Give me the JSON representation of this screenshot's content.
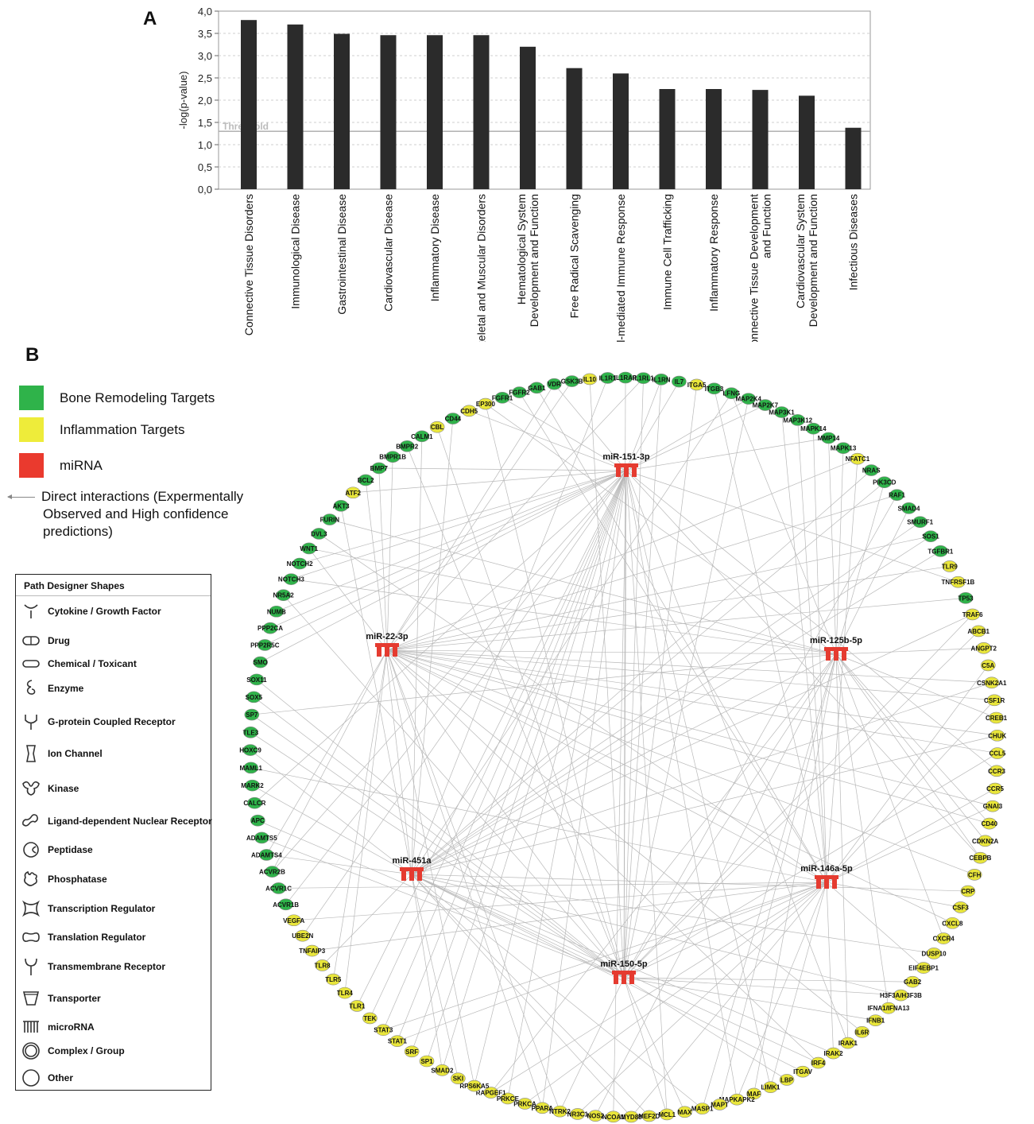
{
  "panel_a": {
    "letter": "A",
    "threshold_label": "Threshold",
    "chart_data": {
      "type": "bar",
      "categories": [
        "Connective Tissue Disorders",
        "Immunological Disease",
        "Gastrointestinal Disease",
        "Cardiovascular Disease",
        "Inflammatory Disease",
        "Skeletal and Muscular Disorders",
        "Hematological System\nDevelopment and Function",
        "Free Radical Scavenging",
        "Cell-mediated Immune Response",
        "Immune Cell Trafficking",
        "Inflammatory Response",
        "Connective Tissue Development\nand Function",
        "Cardiovascular System\nDevelopment and Function",
        "Infectious Diseases"
      ],
      "values": [
        3.8,
        3.7,
        3.49,
        3.46,
        3.46,
        3.46,
        3.2,
        2.72,
        2.6,
        2.25,
        2.25,
        2.23,
        2.1,
        1.38
      ],
      "ylabel": "-log(p-value)",
      "xlabel": "",
      "ylim": [
        0,
        4.0
      ],
      "yticks": [
        "0,0",
        "0,5",
        "1,0",
        "1,5",
        "2,0",
        "2,5",
        "3,0",
        "3,5",
        "4,0"
      ],
      "threshold": 1.3,
      "bar_color": "#2b2b2b",
      "grid": "dashed horizontal"
    }
  },
  "panel_b": {
    "letter": "B",
    "legend": [
      {
        "label": "Bone Remodeling Targets",
        "color": "#2fb34a"
      },
      {
        "label": "Inflammation Targets",
        "color": "#eeec3a"
      },
      {
        "label": "miRNA",
        "color": "#ea3a2e"
      }
    ],
    "arrow_legend": [
      "Direct interactions (Expermentally",
      "Observed and High confidence",
      "predictions)"
    ],
    "shapes_title": "Path Designer Shapes",
    "shapes": [
      {
        "label": "Cytokine / Growth Factor",
        "icon": "cytokine-icon"
      },
      {
        "label": "Drug",
        "icon": "drug-icon"
      },
      {
        "label": "Chemical / Toxicant",
        "icon": "chemical-icon"
      },
      {
        "label": "Enzyme",
        "icon": "enzyme-icon"
      },
      {
        "label": "G-protein Coupled Receptor",
        "icon": "gpcr-icon"
      },
      {
        "label": "Ion Channel",
        "icon": "ion-channel-icon"
      },
      {
        "label": "Kinase",
        "icon": "kinase-icon"
      },
      {
        "label": "Ligand-dependent Nuclear Receptor",
        "icon": "nuclear-receptor-icon"
      },
      {
        "label": "Peptidase",
        "icon": "peptidase-icon"
      },
      {
        "label": "Phosphatase",
        "icon": "phosphatase-icon"
      },
      {
        "label": "Transcription Regulator",
        "icon": "transcription-regulator-icon"
      },
      {
        "label": "Translation Regulator",
        "icon": "translation-regulator-icon"
      },
      {
        "label": "Transmembrane Receptor",
        "icon": "transmembrane-receptor-icon"
      },
      {
        "label": "Transporter",
        "icon": "transporter-icon"
      },
      {
        "label": "microRNA",
        "icon": "microrna-icon"
      },
      {
        "label": "Complex / Group",
        "icon": "complex-icon"
      },
      {
        "label": "Other",
        "icon": "other-icon"
      }
    ],
    "network": {
      "mirnas": [
        "miR-151-3p",
        "miR-22-3p",
        "miR-125b-5p",
        "miR-451a",
        "miR-146a-5p",
        "miR-150-5p"
      ],
      "nodes": [
        {
          "label": "GSK3B",
          "group": "green"
        },
        {
          "label": "IL10",
          "group": "yellow"
        },
        {
          "label": "IL1R1",
          "group": "green"
        },
        {
          "label": "IL1RAP",
          "group": "green"
        },
        {
          "label": "IL1RL1",
          "group": "green"
        },
        {
          "label": "IL1RN",
          "group": "green"
        },
        {
          "label": "IL7",
          "group": "green"
        },
        {
          "label": "ITGA5",
          "group": "yellow"
        },
        {
          "label": "ITGB3",
          "group": "green"
        },
        {
          "label": "LFNG",
          "group": "green"
        },
        {
          "label": "MAP2K4",
          "group": "green"
        },
        {
          "label": "MAP2K7",
          "group": "green"
        },
        {
          "label": "MAP3K1",
          "group": "green"
        },
        {
          "label": "MAP3K12",
          "group": "green"
        },
        {
          "label": "MAPK14",
          "group": "green"
        },
        {
          "label": "MMP14",
          "group": "green"
        },
        {
          "label": "MAPK13",
          "group": "green"
        },
        {
          "label": "NFATC1",
          "group": "yellow"
        },
        {
          "label": "NRAS",
          "group": "green"
        },
        {
          "label": "PIK3CD",
          "group": "green"
        },
        {
          "label": "RAF1",
          "group": "green"
        },
        {
          "label": "SMAD4",
          "group": "green"
        },
        {
          "label": "SMURF1",
          "group": "green"
        },
        {
          "label": "SOS1",
          "group": "green"
        },
        {
          "label": "TGFBR1",
          "group": "green"
        },
        {
          "label": "TLR9",
          "group": "yellow"
        },
        {
          "label": "TNFRSF1B",
          "group": "yellow"
        },
        {
          "label": "TP53",
          "group": "green"
        },
        {
          "label": "TRAF6",
          "group": "yellow"
        },
        {
          "label": "ABCB1",
          "group": "yellow"
        },
        {
          "label": "ANGPT2",
          "group": "yellow"
        },
        {
          "label": "C5A",
          "group": "yellow"
        },
        {
          "label": "CSNK2A1",
          "group": "yellow"
        },
        {
          "label": "CSF1R",
          "group": "yellow"
        },
        {
          "label": "CREB1",
          "group": "yellow"
        },
        {
          "label": "CHUK",
          "group": "yellow"
        },
        {
          "label": "CCL5",
          "group": "yellow"
        },
        {
          "label": "CCR3",
          "group": "yellow"
        },
        {
          "label": "CCR5",
          "group": "yellow"
        },
        {
          "label": "GNAI3",
          "group": "yellow"
        },
        {
          "label": "CD40",
          "group": "yellow"
        },
        {
          "label": "CDKN2A",
          "group": "yellow"
        },
        {
          "label": "CEBPB",
          "group": "yellow"
        },
        {
          "label": "CFH",
          "group": "yellow"
        },
        {
          "label": "CRP",
          "group": "yellow"
        },
        {
          "label": "CSF3",
          "group": "yellow"
        },
        {
          "label": "CXCL8",
          "group": "yellow"
        },
        {
          "label": "CXCR4",
          "group": "yellow"
        },
        {
          "label": "DUSP10",
          "group": "yellow"
        },
        {
          "label": "EIF4EBP1",
          "group": "yellow"
        },
        {
          "label": "GAB2",
          "group": "yellow"
        },
        {
          "label": "H3F3A/H3F3B",
          "group": "yellow"
        },
        {
          "label": "IFNA1/IFNA13",
          "group": "yellow"
        },
        {
          "label": "IFNB1",
          "group": "yellow"
        },
        {
          "label": "IL6R",
          "group": "yellow"
        },
        {
          "label": "IRAK1",
          "group": "yellow"
        },
        {
          "label": "IRAK2",
          "group": "yellow"
        },
        {
          "label": "IRF4",
          "group": "yellow"
        },
        {
          "label": "ITGAV",
          "group": "yellow"
        },
        {
          "label": "LBP",
          "group": "yellow"
        },
        {
          "label": "LIMK1",
          "group": "yellow"
        },
        {
          "label": "MAF",
          "group": "yellow"
        },
        {
          "label": "MAPKAPK2",
          "group": "yellow"
        },
        {
          "label": "MAPT",
          "group": "yellow"
        },
        {
          "label": "MASP1",
          "group": "yellow"
        },
        {
          "label": "MAX",
          "group": "yellow"
        },
        {
          "label": "MCL1",
          "group": "yellow"
        },
        {
          "label": "MEF2D",
          "group": "yellow"
        },
        {
          "label": "MYD88",
          "group": "yellow"
        },
        {
          "label": "NCOA1",
          "group": "yellow"
        },
        {
          "label": "NOS2",
          "group": "yellow"
        },
        {
          "label": "NR3C1",
          "group": "yellow"
        },
        {
          "label": "NTRK2",
          "group": "yellow"
        },
        {
          "label": "PPARA",
          "group": "yellow"
        },
        {
          "label": "PRKCA",
          "group": "yellow"
        },
        {
          "label": "PRKCE",
          "group": "yellow"
        },
        {
          "label": "RAPGEF1",
          "group": "yellow"
        },
        {
          "label": "RPS6KA5",
          "group": "yellow"
        },
        {
          "label": "SKI",
          "group": "yellow"
        },
        {
          "label": "SMAD2",
          "group": "yellow"
        },
        {
          "label": "SP1",
          "group": "yellow"
        },
        {
          "label": "SRF",
          "group": "yellow"
        },
        {
          "label": "STAT1",
          "group": "yellow"
        },
        {
          "label": "STAT3",
          "group": "yellow"
        },
        {
          "label": "TEK",
          "group": "yellow"
        },
        {
          "label": "TLR1",
          "group": "yellow"
        },
        {
          "label": "TLR4",
          "group": "yellow"
        },
        {
          "label": "TLR5",
          "group": "yellow"
        },
        {
          "label": "TLR8",
          "group": "yellow"
        },
        {
          "label": "TNFAIP3",
          "group": "yellow"
        },
        {
          "label": "UBE2N",
          "group": "yellow"
        },
        {
          "label": "VEGFA",
          "group": "yellow"
        },
        {
          "label": "ACVR1B",
          "group": "green"
        },
        {
          "label": "ACVR1C",
          "group": "green"
        },
        {
          "label": "ACVR2B",
          "group": "green"
        },
        {
          "label": "ADAMTS4",
          "group": "green"
        },
        {
          "label": "ADAMTS5",
          "group": "green"
        },
        {
          "label": "APC",
          "group": "green"
        },
        {
          "label": "CALCR",
          "group": "green"
        },
        {
          "label": "MARK2",
          "group": "green"
        },
        {
          "label": "MAML1",
          "group": "green"
        },
        {
          "label": "HOXC9",
          "group": "green"
        },
        {
          "label": "TLE3",
          "group": "green"
        },
        {
          "label": "SP7",
          "group": "green"
        },
        {
          "label": "SOX5",
          "group": "green"
        },
        {
          "label": "SOX11",
          "group": "green"
        },
        {
          "label": "SMO",
          "group": "green"
        },
        {
          "label": "PPP2R5C",
          "group": "green"
        },
        {
          "label": "PPP2CA",
          "group": "green"
        },
        {
          "label": "NUMB",
          "group": "green"
        },
        {
          "label": "NR5A2",
          "group": "green"
        },
        {
          "label": "NOTCH3",
          "group": "green"
        },
        {
          "label": "NOTCH2",
          "group": "green"
        },
        {
          "label": "WNT1",
          "group": "green"
        },
        {
          "label": "DVL3",
          "group": "green"
        },
        {
          "label": "FURIN",
          "group": "green"
        },
        {
          "label": "AKT3",
          "group": "green"
        },
        {
          "label": "ATF2",
          "group": "yellow"
        },
        {
          "label": "BCL2",
          "group": "green"
        },
        {
          "label": "BMP7",
          "group": "green"
        },
        {
          "label": "BMPR1B",
          "group": "green"
        },
        {
          "label": "BMPR2",
          "group": "green"
        },
        {
          "label": "CALM1",
          "group": "green"
        },
        {
          "label": "CBL",
          "group": "yellow"
        },
        {
          "label": "CD44",
          "group": "green"
        },
        {
          "label": "CDH5",
          "group": "yellow"
        },
        {
          "label": "EP300",
          "group": "yellow"
        },
        {
          "label": "FGFR1",
          "group": "green"
        },
        {
          "label": "FGFR2",
          "group": "green"
        },
        {
          "label": "GAB1",
          "group": "green"
        },
        {
          "label": "VDR",
          "group": "green"
        }
      ]
    }
  }
}
